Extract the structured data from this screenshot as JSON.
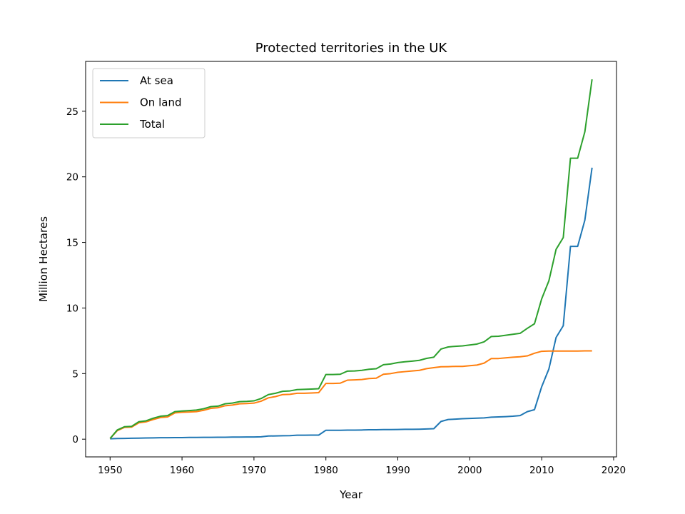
{
  "chart_data": {
    "type": "line",
    "title": "Protected territories in the UK",
    "xlabel": "Year",
    "ylabel": "Million Hectares",
    "xlim": [
      1946.6,
      2020.4
    ],
    "ylim": [
      -1.35,
      28.8
    ],
    "xticks": [
      1950,
      1960,
      1970,
      1980,
      1990,
      2000,
      2010,
      2020
    ],
    "yticks": [
      0,
      5,
      10,
      15,
      20,
      25
    ],
    "grid": false,
    "legend_position": "top-left",
    "x": [
      1950,
      1951,
      1952,
      1953,
      1954,
      1955,
      1956,
      1957,
      1958,
      1959,
      1960,
      1961,
      1962,
      1963,
      1964,
      1965,
      1966,
      1967,
      1968,
      1969,
      1970,
      1971,
      1972,
      1973,
      1974,
      1975,
      1976,
      1977,
      1978,
      1979,
      1980,
      1981,
      1982,
      1983,
      1984,
      1985,
      1986,
      1987,
      1988,
      1989,
      1990,
      1991,
      1992,
      1993,
      1994,
      1995,
      1996,
      1997,
      1998,
      1999,
      2000,
      2001,
      2002,
      2003,
      2004,
      2005,
      2006,
      2007,
      2008,
      2009,
      2010,
      2011,
      2012,
      2013,
      2014,
      2015,
      2016,
      2017
    ],
    "series": [
      {
        "name": "At sea",
        "color": "#1f77b4",
        "values": [
          0.03,
          0.05,
          0.06,
          0.07,
          0.08,
          0.09,
          0.1,
          0.11,
          0.11,
          0.12,
          0.12,
          0.13,
          0.13,
          0.14,
          0.14,
          0.15,
          0.15,
          0.16,
          0.16,
          0.17,
          0.17,
          0.18,
          0.24,
          0.25,
          0.26,
          0.27,
          0.3,
          0.3,
          0.31,
          0.31,
          0.68,
          0.68,
          0.68,
          0.69,
          0.69,
          0.7,
          0.72,
          0.72,
          0.73,
          0.73,
          0.74,
          0.75,
          0.75,
          0.76,
          0.78,
          0.8,
          1.35,
          1.5,
          1.53,
          1.56,
          1.58,
          1.6,
          1.62,
          1.68,
          1.7,
          1.72,
          1.75,
          1.8,
          2.1,
          2.25,
          4.0,
          5.35,
          7.75,
          8.65,
          14.7,
          14.7,
          16.7,
          20.7
        ]
      },
      {
        "name": "On land",
        "color": "#ff7f0e",
        "values": [
          0.05,
          0.65,
          0.9,
          0.92,
          1.25,
          1.32,
          1.5,
          1.65,
          1.7,
          2.0,
          2.05,
          2.07,
          2.1,
          2.2,
          2.35,
          2.4,
          2.55,
          2.6,
          2.7,
          2.72,
          2.75,
          2.9,
          3.15,
          3.25,
          3.4,
          3.42,
          3.5,
          3.5,
          3.52,
          3.55,
          4.25,
          4.25,
          4.27,
          4.5,
          4.52,
          4.55,
          4.62,
          4.65,
          4.95,
          5.0,
          5.1,
          5.15,
          5.2,
          5.25,
          5.38,
          5.45,
          5.52,
          5.53,
          5.55,
          5.55,
          5.6,
          5.65,
          5.8,
          6.15,
          6.15,
          6.2,
          6.25,
          6.28,
          6.35,
          6.55,
          6.7,
          6.72,
          6.72,
          6.72,
          6.72,
          6.72,
          6.73,
          6.73
        ]
      },
      {
        "name": "Total",
        "color": "#2ca02c",
        "values": [
          0.05,
          0.7,
          0.95,
          0.98,
          1.33,
          1.4,
          1.6,
          1.75,
          1.8,
          2.1,
          2.15,
          2.18,
          2.22,
          2.32,
          2.48,
          2.52,
          2.7,
          2.75,
          2.86,
          2.88,
          2.92,
          3.1,
          3.4,
          3.5,
          3.65,
          3.68,
          3.78,
          3.8,
          3.82,
          3.85,
          4.93,
          4.93,
          4.95,
          5.19,
          5.2,
          5.25,
          5.33,
          5.37,
          5.68,
          5.73,
          5.84,
          5.9,
          5.95,
          6.01,
          6.16,
          6.25,
          6.87,
          7.03,
          7.08,
          7.11,
          7.18,
          7.25,
          7.42,
          7.83,
          7.85,
          7.92,
          8.0,
          8.07,
          8.45,
          8.8,
          10.7,
          12.07,
          14.47,
          15.37,
          21.42,
          21.42,
          23.43,
          27.43
        ]
      }
    ]
  }
}
